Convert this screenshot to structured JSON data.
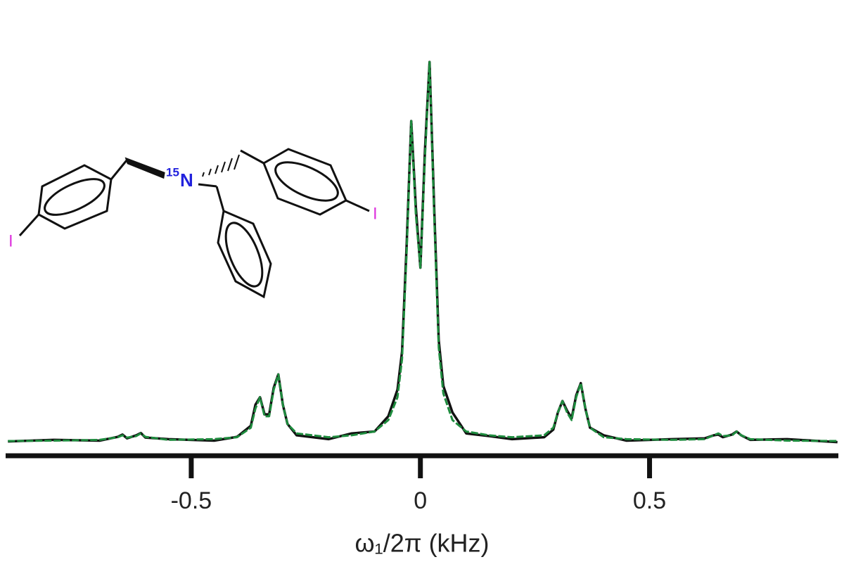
{
  "chart_data": {
    "type": "line",
    "xlabel": "ω₁/2π (kHz)",
    "structure_labels": {
      "mass_number": "15",
      "atom": "N",
      "iodo_left": "I",
      "iodo_right": "I"
    },
    "x": [
      -0.9,
      -0.8,
      -0.7,
      -0.66,
      -0.65,
      -0.64,
      -0.62,
      -0.61,
      -0.6,
      -0.55,
      -0.45,
      -0.4,
      -0.37,
      -0.36,
      -0.35,
      -0.34,
      -0.33,
      -0.32,
      -0.31,
      -0.3,
      -0.29,
      -0.27,
      -0.2,
      -0.15,
      -0.1,
      -0.07,
      -0.05,
      -0.04,
      -0.03,
      -0.02,
      -0.01,
      0,
      0.01,
      0.02,
      0.03,
      0.04,
      0.05,
      0.07,
      0.1,
      0.15,
      0.2,
      0.27,
      0.29,
      0.3,
      0.31,
      0.32,
      0.33,
      0.34,
      0.35,
      0.36,
      0.37,
      0.4,
      0.45,
      0.55,
      0.62,
      0.64,
      0.65,
      0.66,
      0.68,
      0.69,
      0.7,
      0.72,
      0.8,
      0.91
    ],
    "series": [
      {
        "color": "#111111",
        "values": [
          0.004,
          0.008,
          0.006,
          0.016,
          0.022,
          0.012,
          0.02,
          0.026,
          0.014,
          0.01,
          0.006,
          0.016,
          0.045,
          0.1,
          0.12,
          0.075,
          0.075,
          0.145,
          0.18,
          0.1,
          0.05,
          0.02,
          0.01,
          0.025,
          0.03,
          0.07,
          0.14,
          0.24,
          0.52,
          0.845,
          0.62,
          0.46,
          0.77,
          1.0,
          0.62,
          0.27,
          0.15,
          0.08,
          0.025,
          0.018,
          0.01,
          0.015,
          0.035,
          0.08,
          0.11,
          0.085,
          0.065,
          0.125,
          0.157,
          0.09,
          0.04,
          0.02,
          0.006,
          0.01,
          0.012,
          0.02,
          0.022,
          0.015,
          0.022,
          0.03,
          0.02,
          0.008,
          0.01,
          0.002
        ]
      },
      {
        "color": "#1e8c3e",
        "values": [
          0.005,
          0.006,
          0.008,
          0.015,
          0.02,
          0.014,
          0.018,
          0.025,
          0.016,
          0.008,
          0.01,
          0.015,
          0.04,
          0.09,
          0.12,
          0.07,
          0.07,
          0.14,
          0.18,
          0.1,
          0.05,
          0.025,
          0.015,
          0.02,
          0.03,
          0.06,
          0.12,
          0.22,
          0.5,
          0.845,
          0.6,
          0.46,
          0.75,
          1.0,
          0.6,
          0.25,
          0.13,
          0.06,
          0.03,
          0.02,
          0.015,
          0.02,
          0.04,
          0.08,
          0.11,
          0.08,
          0.06,
          0.12,
          0.157,
          0.09,
          0.04,
          0.015,
          0.01,
          0.008,
          0.01,
          0.02,
          0.025,
          0.018,
          0.02,
          0.03,
          0.02,
          0.01,
          0.006,
          0.005
        ]
      }
    ],
    "xlim": [
      -0.905,
      0.912
    ],
    "ylim": [
      -0.03,
      1.1
    ],
    "xticks": [
      -0.5,
      0,
      0.5
    ]
  }
}
